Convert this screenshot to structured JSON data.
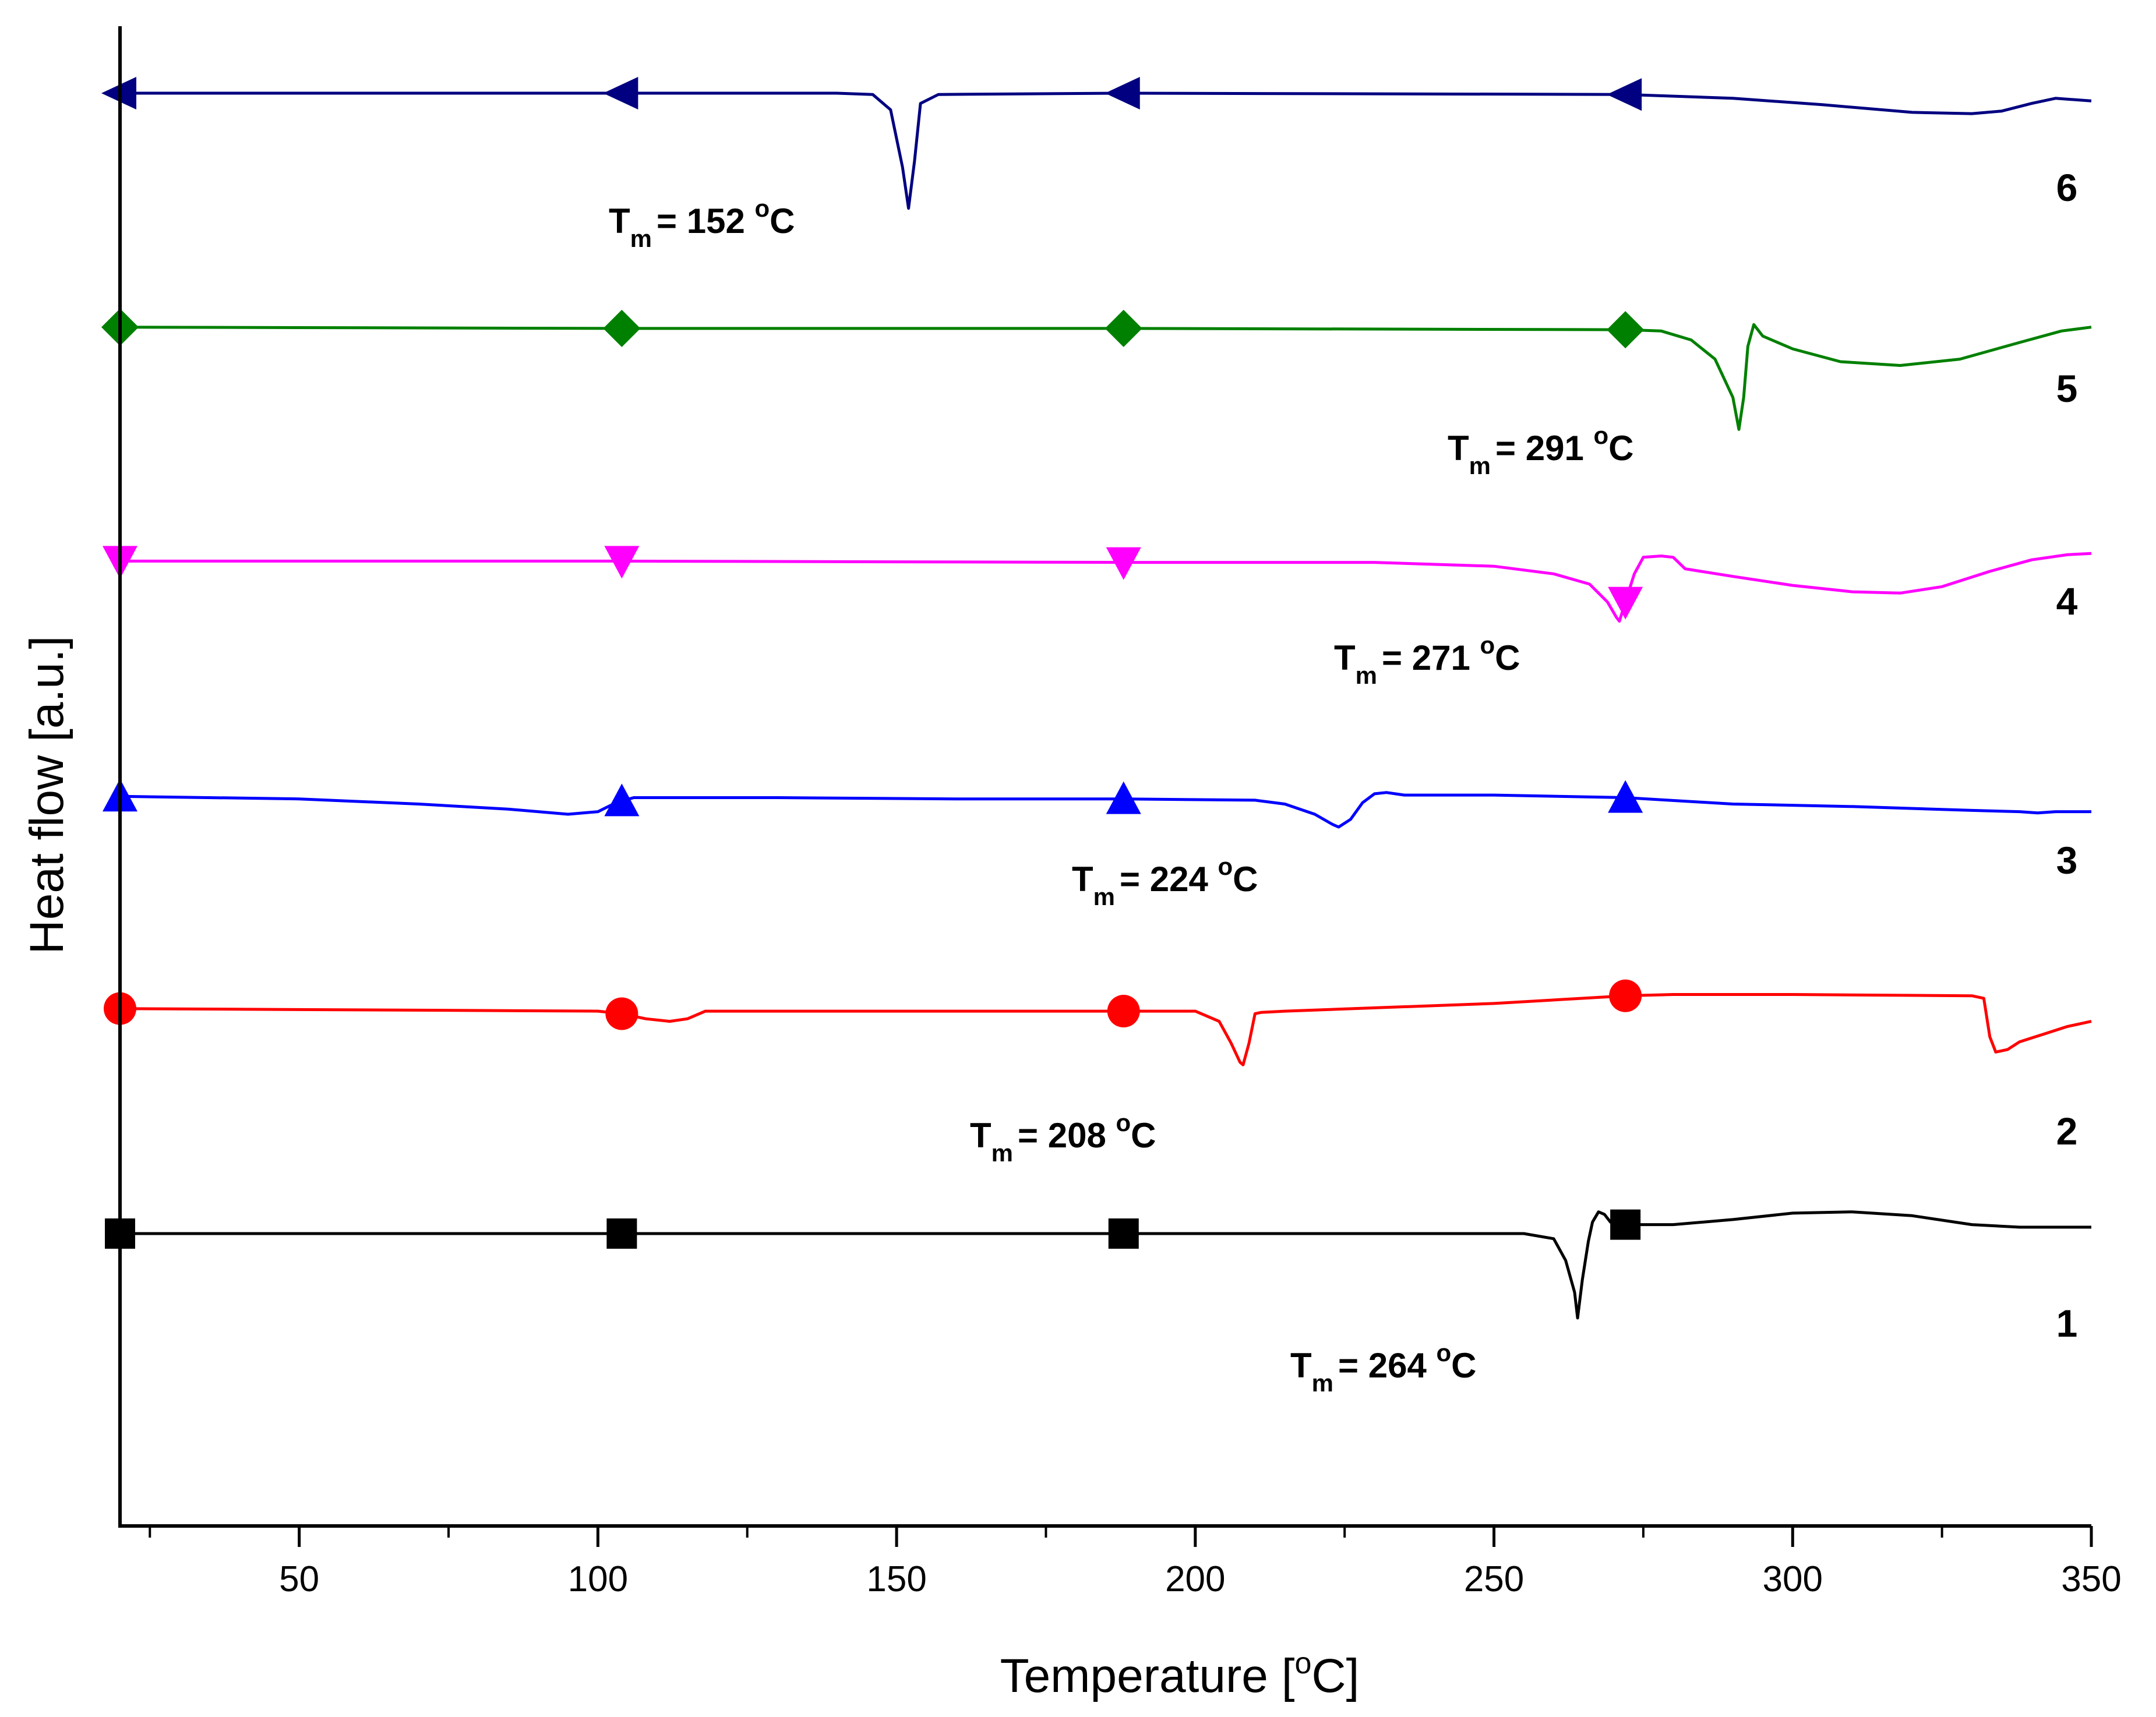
{
  "chart_data": {
    "type": "line",
    "title": "",
    "xlabel_main": "Temperature [",
    "xlabel_unit_super": "o",
    "xlabel_unit_tail": "C]",
    "ylabel": "Heat flow [a.u.]",
    "xlim": [
      20,
      350
    ],
    "xticks": [
      50,
      100,
      150,
      200,
      250,
      300,
      350
    ],
    "xtick_labels": [
      "50",
      "100",
      "150",
      "200",
      "250",
      "300",
      "350"
    ],
    "y_axis": "arbitrary units, curves vertically offset",
    "series": [
      {
        "name": "1",
        "label": "1",
        "color": "#000000",
        "marker": "square",
        "markers_x": [
          20,
          104,
          188,
          272
        ],
        "points": [
          [
            20,
            1.56
          ],
          [
            104,
            1.56
          ],
          [
            188,
            1.56
          ],
          [
            230,
            1.56
          ],
          [
            255,
            1.56
          ],
          [
            260,
            1.52
          ],
          [
            262,
            1.35
          ],
          [
            263.5,
            1.1
          ],
          [
            264,
            0.9
          ],
          [
            264.8,
            1.2
          ],
          [
            265.8,
            1.5
          ],
          [
            266.5,
            1.65
          ],
          [
            267.5,
            1.73
          ],
          [
            268.5,
            1.71
          ],
          [
            269.5,
            1.65
          ],
          [
            271,
            1.62
          ],
          [
            272,
            1.63
          ],
          [
            280,
            1.63
          ],
          [
            290,
            1.67
          ],
          [
            300,
            1.72
          ],
          [
            310,
            1.73
          ],
          [
            320,
            1.7
          ],
          [
            330,
            1.63
          ],
          [
            338,
            1.61
          ],
          [
            350,
            1.61
          ]
        ],
        "tm_label_prefix": "T",
        "tm_label_sub": "m",
        "tm_label_value": "= 264 ",
        "tm_label_deg": "o",
        "tm_label_unit": "C"
      },
      {
        "name": "2",
        "label": "2",
        "color": "#ff0000",
        "marker": "circle",
        "markers_x": [
          20,
          104,
          188,
          272
        ],
        "points": [
          [
            20,
            3.32
          ],
          [
            100,
            3.3
          ],
          [
            104,
            3.28
          ],
          [
            108,
            3.24
          ],
          [
            112,
            3.22
          ],
          [
            115,
            3.24
          ],
          [
            118,
            3.3
          ],
          [
            140,
            3.3
          ],
          [
            188,
            3.3
          ],
          [
            200,
            3.3
          ],
          [
            204,
            3.22
          ],
          [
            206,
            3.05
          ],
          [
            207.5,
            2.9
          ],
          [
            208,
            2.88
          ],
          [
            209,
            3.05
          ],
          [
            210,
            3.28
          ],
          [
            211,
            3.29
          ],
          [
            215,
            3.3
          ],
          [
            250,
            3.36
          ],
          [
            272,
            3.42
          ],
          [
            280,
            3.43
          ],
          [
            300,
            3.43
          ],
          [
            330,
            3.42
          ],
          [
            332,
            3.4
          ],
          [
            333,
            3.1
          ],
          [
            334,
            2.98
          ],
          [
            336,
            3.0
          ],
          [
            338,
            3.06
          ],
          [
            342,
            3.12
          ],
          [
            346,
            3.18
          ],
          [
            350,
            3.22
          ]
        ],
        "tm_label_prefix": "T",
        "tm_label_sub": "m",
        "tm_label_value": "= 208 ",
        "tm_label_deg": "o",
        "tm_label_unit": "C"
      },
      {
        "name": "3",
        "label": "3",
        "color": "#0000ff",
        "marker": "triangle-up",
        "markers_x": [
          20,
          104,
          188,
          272
        ],
        "points": [
          [
            20,
            4.98
          ],
          [
            50,
            4.96
          ],
          [
            70,
            4.92
          ],
          [
            85,
            4.88
          ],
          [
            95,
            4.84
          ],
          [
            100,
            4.86
          ],
          [
            103,
            4.93
          ],
          [
            106,
            4.97
          ],
          [
            130,
            4.97
          ],
          [
            160,
            4.96
          ],
          [
            188,
            4.96
          ],
          [
            210,
            4.95
          ],
          [
            215,
            4.92
          ],
          [
            220,
            4.84
          ],
          [
            223,
            4.76
          ],
          [
            224,
            4.74
          ],
          [
            226,
            4.8
          ],
          [
            228,
            4.93
          ],
          [
            230,
            5.0
          ],
          [
            232,
            5.01
          ],
          [
            235,
            4.99
          ],
          [
            250,
            4.99
          ],
          [
            272,
            4.97
          ],
          [
            290,
            4.92
          ],
          [
            310,
            4.9
          ],
          [
            330,
            4.87
          ],
          [
            338,
            4.86
          ],
          [
            341,
            4.85
          ],
          [
            344,
            4.86
          ],
          [
            350,
            4.86
          ]
        ],
        "tm_label_prefix": "T",
        "tm_label_sub": "m",
        "tm_label_value": "= 224 ",
        "tm_label_deg": "o",
        "tm_label_unit": "C"
      },
      {
        "name": "4",
        "label": "4",
        "color": "#ff00ff",
        "marker": "triangle-down",
        "markers_x": [
          20,
          104,
          188,
          272
        ],
        "points": [
          [
            20,
            6.82
          ],
          [
            104,
            6.82
          ],
          [
            188,
            6.81
          ],
          [
            230,
            6.81
          ],
          [
            250,
            6.78
          ],
          [
            260,
            6.72
          ],
          [
            266,
            6.64
          ],
          [
            269,
            6.5
          ],
          [
            270.5,
            6.38
          ],
          [
            271,
            6.35
          ],
          [
            272,
            6.5
          ],
          [
            273.5,
            6.72
          ],
          [
            275,
            6.85
          ],
          [
            278,
            6.86
          ],
          [
            280,
            6.85
          ],
          [
            282,
            6.76
          ],
          [
            290,
            6.7
          ],
          [
            300,
            6.63
          ],
          [
            310,
            6.58
          ],
          [
            318,
            6.57
          ],
          [
            325,
            6.62
          ],
          [
            333,
            6.74
          ],
          [
            340,
            6.83
          ],
          [
            346,
            6.87
          ],
          [
            350,
            6.88
          ]
        ],
        "tm_label_prefix": "T",
        "tm_label_sub": "m",
        "tm_label_value": "= 271 ",
        "tm_label_deg": "o",
        "tm_label_unit": "C"
      },
      {
        "name": "5",
        "label": "5",
        "color": "#008000",
        "marker": "diamond",
        "markers_x": [
          20,
          104,
          188,
          272
        ],
        "points": [
          [
            20,
            8.65
          ],
          [
            104,
            8.64
          ],
          [
            188,
            8.64
          ],
          [
            272,
            8.63
          ],
          [
            278,
            8.62
          ],
          [
            283,
            8.55
          ],
          [
            287,
            8.4
          ],
          [
            290,
            8.1
          ],
          [
            291,
            7.85
          ],
          [
            291.8,
            8.1
          ],
          [
            292.5,
            8.5
          ],
          [
            293.5,
            8.67
          ],
          [
            295,
            8.58
          ],
          [
            300,
            8.48
          ],
          [
            308,
            8.38
          ],
          [
            318,
            8.35
          ],
          [
            328,
            8.4
          ],
          [
            338,
            8.53
          ],
          [
            345,
            8.62
          ],
          [
            350,
            8.65
          ]
        ],
        "tm_label_prefix": "T",
        "tm_label_sub": "m",
        "tm_label_value": "= 291 ",
        "tm_label_deg": "o",
        "tm_label_unit": "C"
      },
      {
        "name": "6",
        "label": "6",
        "color": "#000080",
        "marker": "triangle-left",
        "markers_x": [
          20,
          104,
          188,
          272
        ],
        "points": [
          [
            20,
            10.48
          ],
          [
            104,
            10.48
          ],
          [
            140,
            10.48
          ],
          [
            146,
            10.47
          ],
          [
            149,
            10.35
          ],
          [
            151,
            9.9
          ],
          [
            152,
            9.58
          ],
          [
            153,
            9.95
          ],
          [
            154,
            10.4
          ],
          [
            157,
            10.47
          ],
          [
            188,
            10.48
          ],
          [
            272,
            10.47
          ],
          [
            290,
            10.44
          ],
          [
            305,
            10.39
          ],
          [
            320,
            10.33
          ],
          [
            330,
            10.32
          ],
          [
            335,
            10.34
          ],
          [
            340,
            10.4
          ],
          [
            344,
            10.44
          ],
          [
            350,
            10.42
          ]
        ],
        "tm_label_prefix": "T",
        "tm_label_sub": "m",
        "tm_label_value": "= 152 ",
        "tm_label_deg": "o",
        "tm_label_unit": "C"
      }
    ]
  }
}
